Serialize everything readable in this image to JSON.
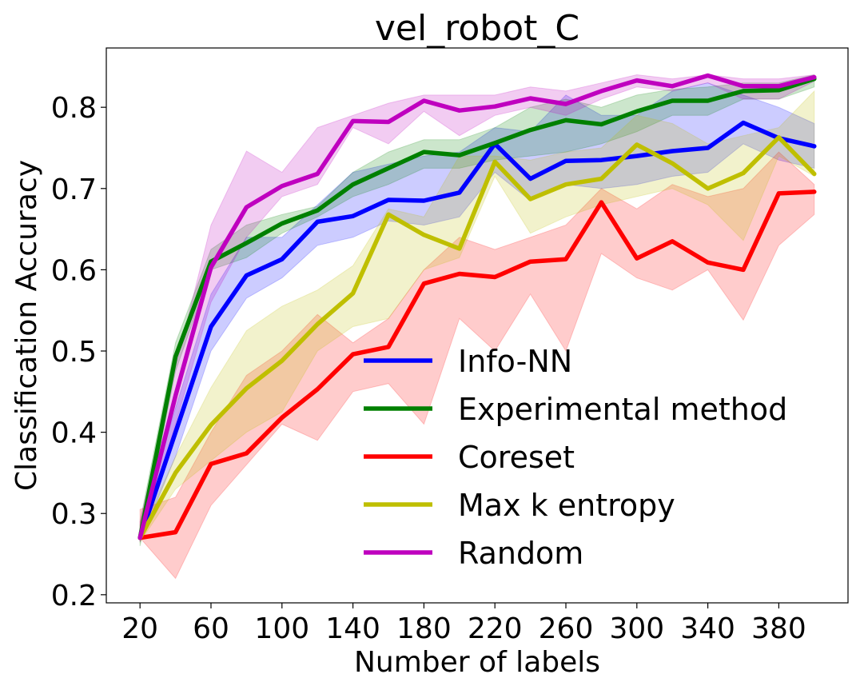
{
  "chart_data": {
    "type": "line",
    "title": "vel_robot_C",
    "xlabel": "Number of labels",
    "ylabel": "Classification Accuracy",
    "xlim": [
      0,
      420
    ],
    "ylim": [
      0.19,
      0.873
    ],
    "xticks": [
      20,
      60,
      100,
      140,
      180,
      220,
      260,
      300,
      340,
      380
    ],
    "yticks": [
      0.2,
      0.3,
      0.4,
      0.5,
      0.6,
      0.7,
      0.8
    ],
    "grid": false,
    "legend_position": "lower-right",
    "x": [
      20,
      40,
      60,
      80,
      100,
      120,
      140,
      160,
      180,
      200,
      220,
      240,
      260,
      280,
      300,
      320,
      340,
      360,
      380,
      400
    ],
    "series": [
      {
        "name": "Info-NN",
        "color": "#0000ff",
        "values": [
          0.27,
          0.4,
          0.53,
          0.593,
          0.613,
          0.659,
          0.666,
          0.686,
          0.685,
          0.695,
          0.755,
          0.712,
          0.734,
          0.735,
          0.74,
          0.746,
          0.75,
          0.781,
          0.762,
          0.752
        ],
        "lower": [
          0.265,
          0.37,
          0.5,
          0.565,
          0.59,
          0.63,
          0.64,
          0.66,
          0.655,
          0.665,
          0.72,
          0.685,
          0.705,
          0.7,
          0.705,
          0.715,
          0.72,
          0.755,
          0.735,
          0.725
        ],
        "upper": [
          0.28,
          0.43,
          0.57,
          0.64,
          0.64,
          0.68,
          0.72,
          0.73,
          0.74,
          0.745,
          0.775,
          0.77,
          0.815,
          0.79,
          0.79,
          0.82,
          0.83,
          0.815,
          0.8,
          0.78
        ]
      },
      {
        "name": "Experimental method",
        "color": "#008000",
        "values": [
          0.27,
          0.493,
          0.61,
          0.633,
          0.657,
          0.673,
          0.705,
          0.725,
          0.745,
          0.741,
          0.756,
          0.772,
          0.784,
          0.779,
          0.795,
          0.808,
          0.808,
          0.82,
          0.821,
          0.835
        ],
        "lower": [
          0.26,
          0.475,
          0.6,
          0.615,
          0.645,
          0.665,
          0.69,
          0.705,
          0.725,
          0.725,
          0.735,
          0.74,
          0.745,
          0.755,
          0.77,
          0.79,
          0.79,
          0.81,
          0.81,
          0.825
        ],
        "upper": [
          0.29,
          0.51,
          0.625,
          0.655,
          0.668,
          0.678,
          0.72,
          0.745,
          0.76,
          0.76,
          0.775,
          0.8,
          0.81,
          0.8,
          0.815,
          0.822,
          0.825,
          0.83,
          0.83,
          0.84
        ]
      },
      {
        "name": "Coreset",
        "color": "#ff0000",
        "values": [
          0.27,
          0.277,
          0.361,
          0.374,
          0.418,
          0.453,
          0.496,
          0.505,
          0.583,
          0.595,
          0.591,
          0.61,
          0.613,
          0.683,
          0.614,
          0.635,
          0.609,
          0.6,
          0.694,
          0.696
        ],
        "lower": [
          0.27,
          0.22,
          0.31,
          0.36,
          0.41,
          0.39,
          0.45,
          0.46,
          0.41,
          0.54,
          0.5,
          0.57,
          0.5,
          0.62,
          0.59,
          0.575,
          0.6,
          0.538,
          0.63,
          0.668
        ],
        "upper": [
          0.305,
          0.32,
          0.4,
          0.47,
          0.5,
          0.545,
          0.51,
          0.54,
          0.6,
          0.64,
          0.625,
          0.64,
          0.655,
          0.7,
          0.675,
          0.705,
          0.69,
          0.7,
          0.745,
          0.705
        ]
      },
      {
        "name": "Max k entropy",
        "color": "#bfbf00",
        "values": [
          0.27,
          0.35,
          0.409,
          0.454,
          0.488,
          0.533,
          0.571,
          0.668,
          0.643,
          0.626,
          0.733,
          0.687,
          0.705,
          0.712,
          0.754,
          0.731,
          0.7,
          0.719,
          0.763,
          0.718
        ],
        "lower": [
          0.265,
          0.33,
          0.365,
          0.4,
          0.425,
          0.5,
          0.53,
          0.54,
          0.6,
          0.615,
          0.715,
          0.645,
          0.665,
          0.68,
          0.69,
          0.7,
          0.68,
          0.636,
          0.74,
          0.715
        ],
        "upper": [
          0.275,
          0.37,
          0.455,
          0.525,
          0.555,
          0.575,
          0.605,
          0.675,
          0.665,
          0.74,
          0.74,
          0.735,
          0.745,
          0.75,
          0.79,
          0.78,
          0.755,
          0.765,
          0.775,
          0.82
        ]
      },
      {
        "name": "Random",
        "color": "#bf00bf",
        "values": [
          0.27,
          0.445,
          0.603,
          0.677,
          0.703,
          0.718,
          0.783,
          0.782,
          0.808,
          0.796,
          0.801,
          0.811,
          0.804,
          0.82,
          0.833,
          0.826,
          0.839,
          0.826,
          0.826,
          0.837
        ],
        "lower": [
          0.265,
          0.41,
          0.56,
          0.64,
          0.69,
          0.705,
          0.775,
          0.755,
          0.795,
          0.765,
          0.79,
          0.8,
          0.79,
          0.81,
          0.825,
          0.82,
          0.83,
          0.81,
          0.81,
          0.832
        ],
        "upper": [
          0.29,
          0.48,
          0.655,
          0.746,
          0.72,
          0.775,
          0.79,
          0.805,
          0.815,
          0.815,
          0.815,
          0.825,
          0.82,
          0.83,
          0.84,
          0.835,
          0.84,
          0.835,
          0.835,
          0.84
        ]
      }
    ]
  }
}
